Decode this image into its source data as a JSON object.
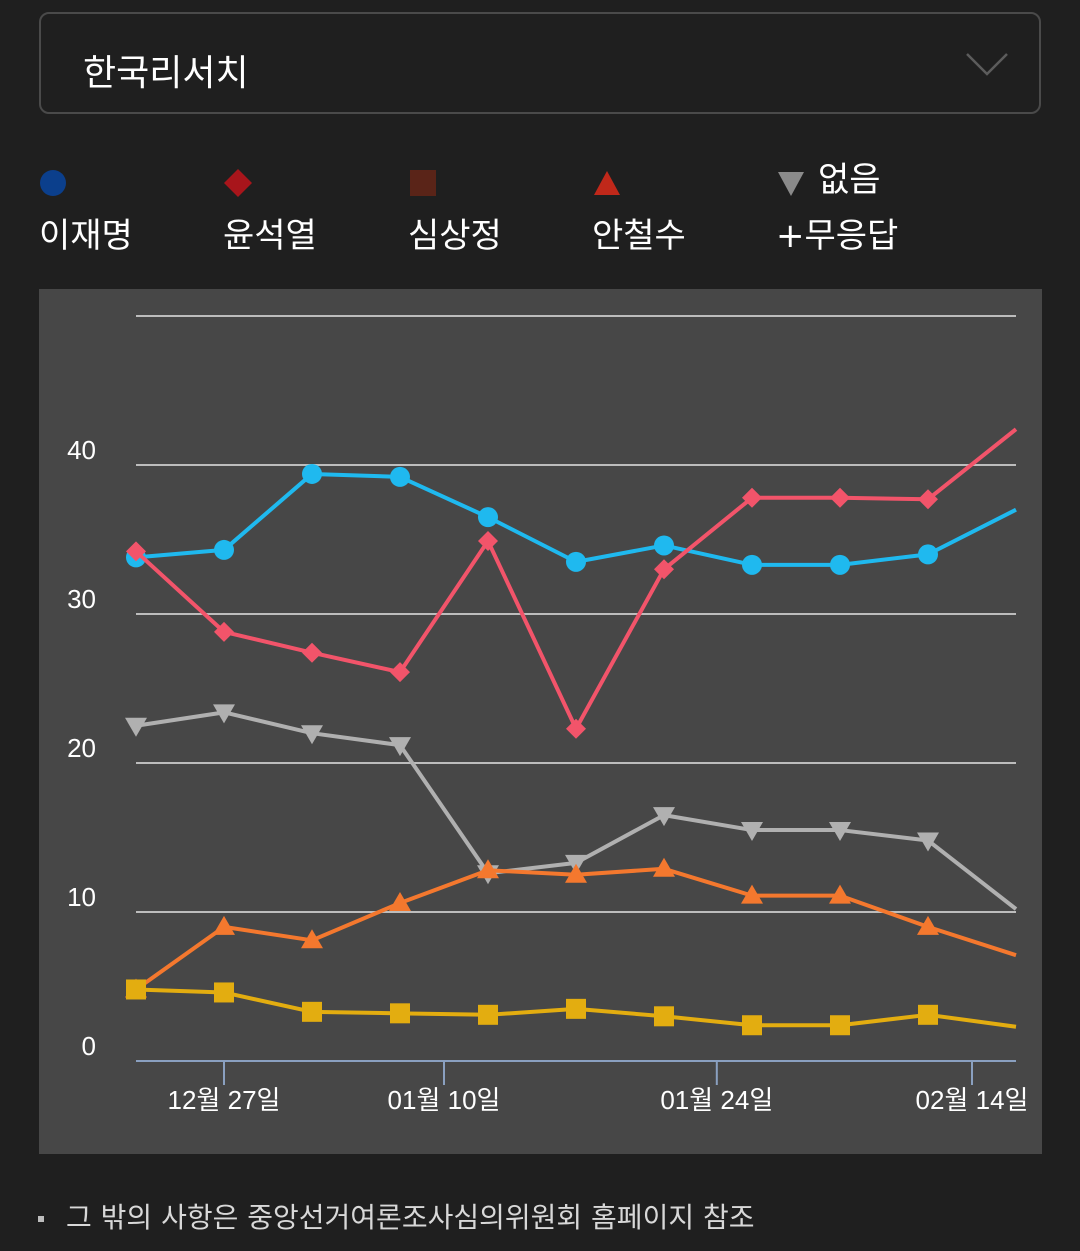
{
  "selector": {
    "label": "한국리서치",
    "icon": "chevron-down-icon"
  },
  "legend": [
    {
      "name": "이재명",
      "marker": "circle",
      "color": "#0b3f8c"
    },
    {
      "name": "윤석열",
      "marker": "diamond",
      "color": "#a8151b"
    },
    {
      "name": "심상정",
      "marker": "square",
      "color": "#5a2418"
    },
    {
      "name": "안철수",
      "marker": "triangle-up",
      "color": "#c0281a"
    },
    {
      "name_line1": "없음",
      "name_line2": "+무응답",
      "marker": "triangle-down",
      "color": "#8a8a8a"
    }
  ],
  "chart_data": {
    "type": "line",
    "x": [
      "p1",
      "p2",
      "p3",
      "p4",
      "p5",
      "p6",
      "p7",
      "p8",
      "p9",
      "p10",
      "p11"
    ],
    "x_tick_labels": [
      {
        "label": "12월 27일",
        "at": 1
      },
      {
        "label": "01월 10일",
        "at": 3.5
      },
      {
        "label": "01월 24일",
        "at": 6.6
      },
      {
        "label": "02월 14일",
        "at": 9.5
      }
    ],
    "ylim": [
      0,
      50
    ],
    "y_ticks": [
      0,
      10,
      20,
      30,
      40
    ],
    "grid": true,
    "series": [
      {
        "name": "이재명",
        "color": "#1fb9ef",
        "marker": "circle",
        "values": [
          33.8,
          34.3,
          39.4,
          39.2,
          36.5,
          33.5,
          34.6,
          33.3,
          33.3,
          34.0,
          37.0
        ]
      },
      {
        "name": "윤석열",
        "color": "#f2546a",
        "marker": "diamond",
        "values": [
          34.2,
          28.8,
          27.4,
          26.1,
          34.9,
          22.3,
          33.0,
          37.8,
          37.8,
          37.7,
          42.4
        ]
      },
      {
        "name": "없음+무응답",
        "color": "#b0b0b0",
        "marker": "triangle-down",
        "values": [
          22.5,
          23.4,
          22.0,
          21.2,
          12.6,
          13.3,
          16.5,
          15.5,
          15.5,
          14.8,
          10.2
        ]
      },
      {
        "name": "안철수",
        "color": "#f4782e",
        "marker": "triangle-up",
        "values": [
          4.8,
          9.0,
          8.1,
          10.6,
          12.8,
          12.5,
          12.9,
          11.1,
          11.1,
          9.0,
          7.1
        ]
      },
      {
        "name": "심상정",
        "color": "#e3ad10",
        "marker": "square",
        "values": [
          4.8,
          4.6,
          3.3,
          3.2,
          3.1,
          3.5,
          3.0,
          2.4,
          2.4,
          3.1,
          2.3
        ]
      }
    ]
  },
  "footnote": "그 밖의 사항은 중앙선거여론조사심의위원회 홈페이지 참조"
}
